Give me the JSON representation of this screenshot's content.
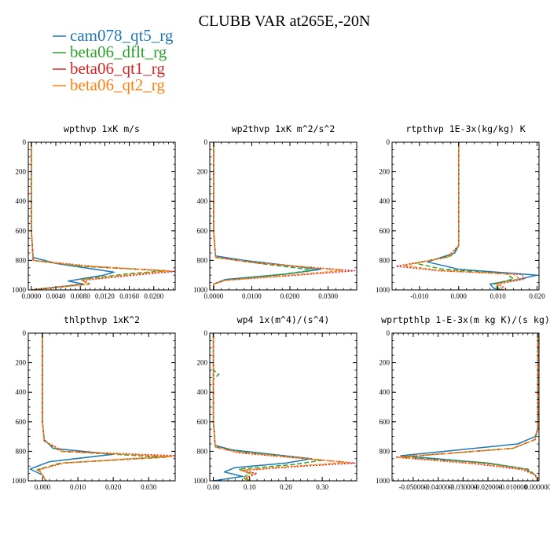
{
  "title": "CLUBB VAR at265E,-20N",
  "legend": [
    {
      "name": "cam078_qt5_rg",
      "color": "#1f77b4"
    },
    {
      "name": "beta06_dflt_rg",
      "color": "#2ca02c"
    },
    {
      "name": "beta06_qt1_rg",
      "color": "#d62728"
    },
    {
      "name": "beta06_qt2_rg",
      "color": "#ff7f0e"
    }
  ],
  "chart_data": [
    {
      "type": "line",
      "title": "wpthvp  1xK m/s",
      "xlim": [
        -0.0005,
        0.0235
      ],
      "xticks": [
        0.0,
        0.004,
        0.008,
        0.012,
        0.016,
        0.02
      ],
      "xticklabels": [
        "0.0000",
        "0.0040",
        "0.0080",
        "0.0120",
        "0.0160",
        "0.0200"
      ],
      "ylim": [
        0,
        1000
      ],
      "yticks": [
        0,
        200,
        400,
        600,
        800,
        1000
      ],
      "series": [
        {
          "name": "cam078_qt5_rg",
          "x": [
            0.0,
            0.0,
            0.0003,
            0.004,
            0.0135,
            0.0118,
            0.006,
            0.0085,
            0.0
          ],
          "y": [
            0,
            600,
            780,
            820,
            880,
            900,
            940,
            960,
            1000
          ]
        },
        {
          "name": "beta06_dflt_rg",
          "x": [
            0.0,
            0.0,
            0.0003,
            0.008,
            0.022,
            0.016,
            0.008,
            0.0095,
            0.0
          ],
          "y": [
            0,
            600,
            800,
            840,
            870,
            890,
            930,
            960,
            1000
          ]
        },
        {
          "name": "beta06_qt1_rg",
          "x": [
            0.0,
            0.0,
            0.0003,
            0.01,
            0.0235,
            0.018,
            0.0085,
            0.0095,
            0.0
          ],
          "y": [
            0,
            600,
            800,
            840,
            875,
            895,
            935,
            960,
            1000
          ]
        },
        {
          "name": "beta06_qt2_rg",
          "x": [
            0.0,
            0.0,
            0.0003,
            0.009,
            0.0225,
            0.017,
            0.0082,
            0.0093,
            0.0
          ],
          "y": [
            0,
            600,
            800,
            840,
            872,
            892,
            932,
            960,
            1000
          ]
        }
      ]
    },
    {
      "type": "line",
      "title": "wp2thvp  1xK m^2/s^2",
      "xlim": [
        -0.001,
        0.0375
      ],
      "xticks": [
        0.0,
        0.01,
        0.02,
        0.03
      ],
      "xticklabels": [
        "0.0000",
        "0.0100",
        "0.0200",
        "0.0300"
      ],
      "ylim": [
        0,
        1000
      ],
      "yticks": [
        0,
        200,
        400,
        600,
        800,
        1000
      ],
      "series": [
        {
          "name": "cam078_qt5_rg",
          "x": [
            0.0,
            0.0,
            0.0005,
            0.008,
            0.028,
            0.02,
            0.003,
            0.0,
            0.0
          ],
          "y": [
            0,
            600,
            770,
            800,
            860,
            890,
            930,
            960,
            1000
          ]
        },
        {
          "name": "beta06_dflt_rg",
          "x": [
            0.0,
            0.0,
            0.0005,
            0.009,
            0.026,
            0.018,
            0.003,
            0.0,
            0.0
          ],
          "y": [
            0,
            600,
            780,
            810,
            865,
            895,
            935,
            960,
            1000
          ]
        },
        {
          "name": "beta06_qt1_rg",
          "x": [
            0.0,
            0.0,
            0.0005,
            0.012,
            0.037,
            0.022,
            0.003,
            0.0,
            0.0
          ],
          "y": [
            0,
            600,
            780,
            820,
            870,
            900,
            935,
            960,
            1000
          ]
        },
        {
          "name": "beta06_qt2_rg",
          "x": [
            0.0,
            0.0,
            0.0005,
            0.011,
            0.034,
            0.021,
            0.003,
            0.0,
            0.0
          ],
          "y": [
            0,
            600,
            780,
            815,
            868,
            898,
            935,
            960,
            1000
          ]
        }
      ]
    },
    {
      "type": "line",
      "title": "rtpthvp  1E-3x(kg/kg) K",
      "xlim": [
        -0.017,
        0.0205
      ],
      "xticks": [
        -0.01,
        0.0,
        0.01,
        0.02
      ],
      "xticklabels": [
        "-0.010",
        "0.000",
        "0.010",
        "0.020"
      ],
      "ylim": [
        0,
        1000
      ],
      "yticks": [
        0,
        200,
        400,
        600,
        800,
        1000
      ],
      "series": [
        {
          "name": "cam078_qt5_rg",
          "x": [
            0.0,
            0.0,
            -0.001,
            -0.008,
            0.0,
            0.02,
            0.015,
            0.008,
            0.009,
            0.011
          ],
          "y": [
            0,
            700,
            750,
            810,
            860,
            900,
            930,
            960,
            990,
            1000
          ]
        },
        {
          "name": "beta06_dflt_rg",
          "x": [
            0.0,
            0.0,
            -0.002,
            -0.011,
            -0.004,
            0.012,
            0.014,
            0.009,
            0.01,
            0.011
          ],
          "y": [
            0,
            700,
            770,
            820,
            860,
            890,
            925,
            960,
            990,
            1000
          ]
        },
        {
          "name": "beta06_qt1_rg",
          "x": [
            0.0,
            0.0,
            -0.003,
            -0.016,
            -0.005,
            0.016,
            0.017,
            0.01,
            0.012,
            0.011
          ],
          "y": [
            0,
            700,
            780,
            840,
            870,
            895,
            925,
            960,
            990,
            1000
          ]
        },
        {
          "name": "beta06_qt2_rg",
          "x": [
            0.0,
            0.0,
            -0.0025,
            -0.014,
            -0.005,
            0.014,
            0.0155,
            0.0095,
            0.011,
            0.011
          ],
          "y": [
            0,
            700,
            775,
            835,
            868,
            893,
            925,
            960,
            990,
            1000
          ]
        }
      ]
    },
    {
      "type": "line",
      "title": "thlpthvp  1xK^2",
      "xlim": [
        -0.004,
        0.0375
      ],
      "xticks": [
        0.0,
        0.01,
        0.02,
        0.03
      ],
      "xticklabels": [
        "0.000",
        "0.010",
        "0.020",
        "0.030"
      ],
      "ylim": [
        0,
        1000
      ],
      "yticks": [
        0,
        200,
        400,
        600,
        800,
        1000
      ],
      "series": [
        {
          "name": "cam078_qt5_rg",
          "x": [
            0.0,
            0.0,
            0.0005,
            0.003,
            0.02,
            0.002,
            -0.0035,
            0.0,
            0.001
          ],
          "y": [
            0,
            600,
            720,
            780,
            820,
            870,
            920,
            960,
            1000
          ]
        },
        {
          "name": "beta06_dflt_rg",
          "x": [
            0.0,
            0.0,
            0.0005,
            0.005,
            0.035,
            0.005,
            -0.0015,
            0.0,
            0.001
          ],
          "y": [
            0,
            600,
            730,
            800,
            840,
            880,
            925,
            960,
            1000
          ]
        },
        {
          "name": "beta06_qt1_rg",
          "x": [
            0.0,
            0.0,
            0.0005,
            0.006,
            0.0375,
            0.006,
            -0.001,
            0.0,
            0.001
          ],
          "y": [
            0,
            600,
            730,
            800,
            830,
            880,
            925,
            960,
            1000
          ]
        },
        {
          "name": "beta06_qt2_rg",
          "x": [
            0.0,
            0.0,
            0.0005,
            0.0055,
            0.0365,
            0.0055,
            -0.0012,
            0.0,
            0.001
          ],
          "y": [
            0,
            600,
            730,
            800,
            835,
            880,
            925,
            960,
            1000
          ]
        }
      ]
    },
    {
      "type": "line",
      "title": "wp4  1x(m^4)/(s^4)",
      "xlim": [
        -0.01,
        0.395
      ],
      "xticks": [
        0.0,
        0.1,
        0.2,
        0.3
      ],
      "xticklabels": [
        "0.00",
        "0.10",
        "0.20",
        "0.30"
      ],
      "ylim": [
        0,
        1000
      ],
      "yticks": [
        0,
        200,
        400,
        600,
        800,
        1000
      ],
      "series": [
        {
          "name": "cam078_qt5_rg",
          "x": [
            0.0,
            0.0,
            0.005,
            0.05,
            0.27,
            0.2,
            0.06,
            0.03,
            0.08,
            0.0
          ],
          "y": [
            0,
            600,
            760,
            790,
            850,
            880,
            910,
            940,
            970,
            1000
          ]
        },
        {
          "name": "beta06_dflt_rg",
          "x": [
            0.0,
            0.0,
            0.015,
            0.0,
            0.0,
            0.005,
            0.06,
            0.3,
            0.22,
            0.07,
            0.1,
            0.08,
            0.1
          ],
          "y": [
            0,
            250,
            280,
            310,
            600,
            770,
            800,
            860,
            890,
            920,
            950,
            980,
            1000
          ]
        },
        {
          "name": "beta06_qt1_rg",
          "x": [
            0.0,
            0.0,
            0.005,
            0.07,
            0.39,
            0.25,
            0.08,
            0.12,
            0.09,
            0.1
          ],
          "y": [
            0,
            600,
            770,
            810,
            880,
            900,
            930,
            950,
            980,
            1000
          ]
        },
        {
          "name": "beta06_qt2_rg",
          "x": [
            0.0,
            0.0,
            0.005,
            0.065,
            0.37,
            0.24,
            0.075,
            0.11,
            0.09,
            0.1
          ],
          "y": [
            0,
            600,
            770,
            805,
            875,
            898,
            928,
            950,
            980,
            1000
          ]
        }
      ]
    },
    {
      "type": "line",
      "title": "wprtpthlp  1-E-3x(m kg K)/(s kg)",
      "xlim": [
        -0.0585,
        0.0005
      ],
      "xticks": [
        -0.05,
        -0.04,
        -0.03,
        -0.02,
        -0.01,
        0.0
      ],
      "xticklabels": [
        "-0.050000",
        "-0.040000",
        "-0.030000",
        "-0.020000",
        "-0.010000",
        "0.000000"
      ],
      "ylim": [
        0,
        1000
      ],
      "yticks": [
        0,
        200,
        400,
        600,
        800,
        1000
      ],
      "series": [
        {
          "name": "cam078_qt5_rg",
          "x": [
            0.0,
            0.0,
            -0.001,
            -0.008,
            -0.055,
            -0.02,
            -0.005,
            -0.001,
            0.0
          ],
          "y": [
            0,
            650,
            700,
            750,
            830,
            880,
            920,
            960,
            1000
          ]
        },
        {
          "name": "beta06_dflt_rg",
          "x": [
            0.0,
            0.0,
            -0.001,
            -0.01,
            -0.055,
            -0.02,
            -0.004,
            -0.001,
            0.0
          ],
          "y": [
            0,
            650,
            720,
            780,
            840,
            880,
            920,
            960,
            1000
          ]
        },
        {
          "name": "beta06_qt1_rg",
          "x": [
            0.0,
            0.0,
            -0.001,
            -0.01,
            -0.057,
            -0.025,
            -0.006,
            -0.001,
            0.0
          ],
          "y": [
            0,
            650,
            720,
            780,
            840,
            885,
            925,
            960,
            1000
          ]
        },
        {
          "name": "beta06_qt2_rg",
          "x": [
            0.0,
            0.0,
            -0.001,
            -0.01,
            -0.056,
            -0.023,
            -0.005,
            -0.001,
            0.0
          ],
          "y": [
            0,
            650,
            720,
            780,
            840,
            882,
            922,
            960,
            1000
          ]
        }
      ]
    }
  ]
}
